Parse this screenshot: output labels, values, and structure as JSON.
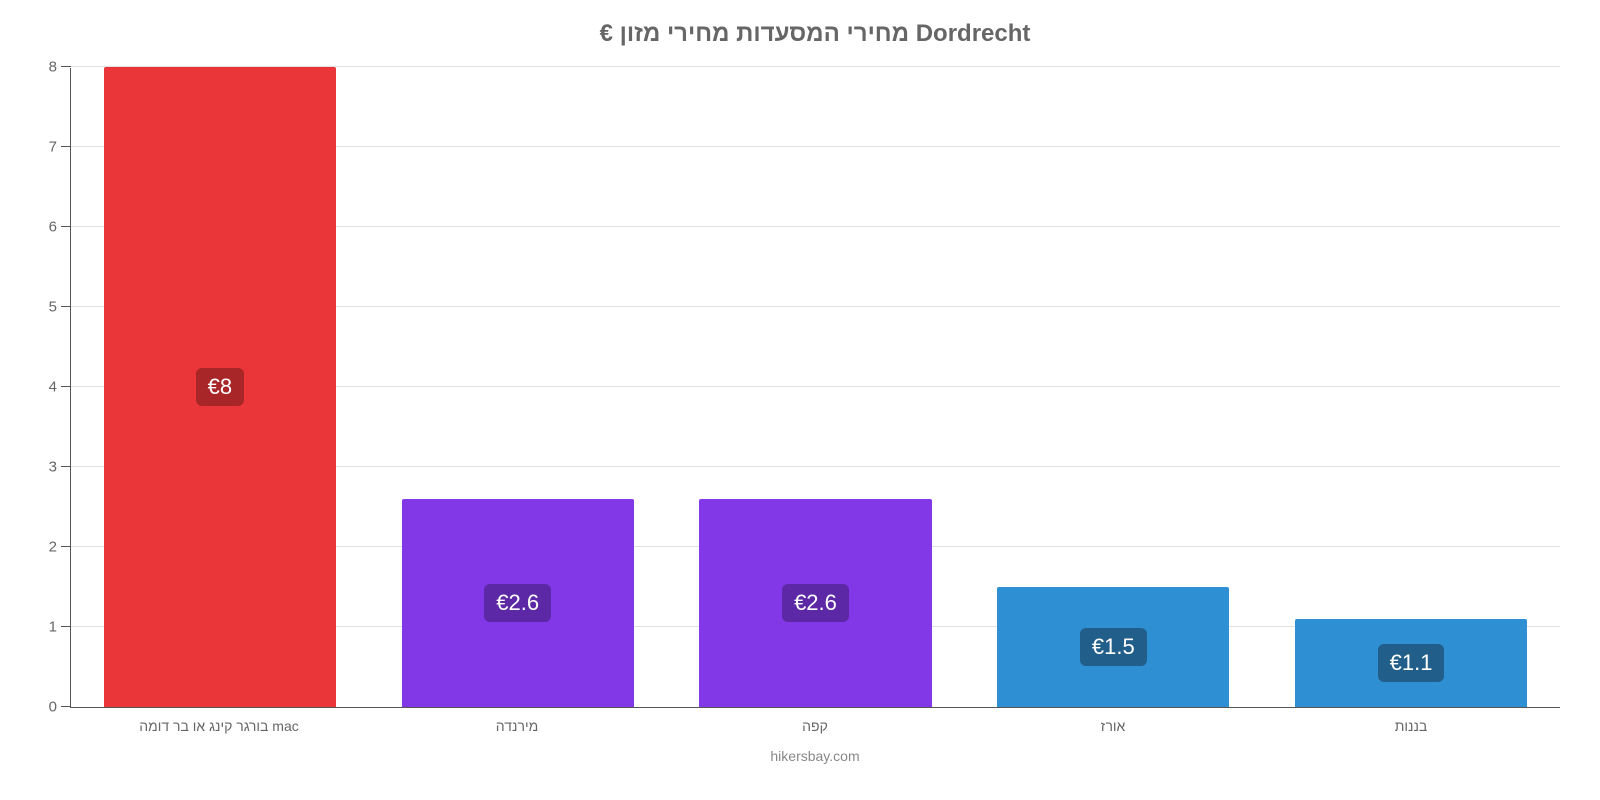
{
  "chart": {
    "type": "bar",
    "title": "€ מחירי המסעדות מחירי מזון Dordrecht",
    "title_fontsize": 24,
    "title_color": "#666666",
    "footer": "hikersbay.com",
    "footer_fontsize": 14,
    "background_color": "#ffffff",
    "axis_color": "#555555",
    "grid_color": "#e0e0e0",
    "ylim": [
      0,
      8
    ],
    "ytick_step": 1,
    "yticks": [
      0,
      1,
      2,
      3,
      4,
      5,
      6,
      7,
      8
    ],
    "tick_fontsize": 15,
    "tick_color": "#666666",
    "bar_width": 0.78,
    "bar_label_fontsize": 22,
    "x_label_fontsize": 14,
    "categories": [
      "בורגר קינג או בר דומה mac",
      "מירנדה",
      "קפה",
      "אורז",
      "בננות"
    ],
    "values": [
      8,
      2.6,
      2.6,
      1.5,
      1.1
    ],
    "value_labels": [
      "€8",
      "€2.6",
      "€2.6",
      "€1.5",
      "€1.1"
    ],
    "bar_colors": [
      "#eb3639",
      "#8338e8",
      "#8338e8",
      "#2f8fd3",
      "#2f8fd3"
    ],
    "label_bg_colors": [
      "#a82628",
      "#5d28a5",
      "#5d28a5",
      "#215e8a",
      "#215e8a"
    ]
  }
}
